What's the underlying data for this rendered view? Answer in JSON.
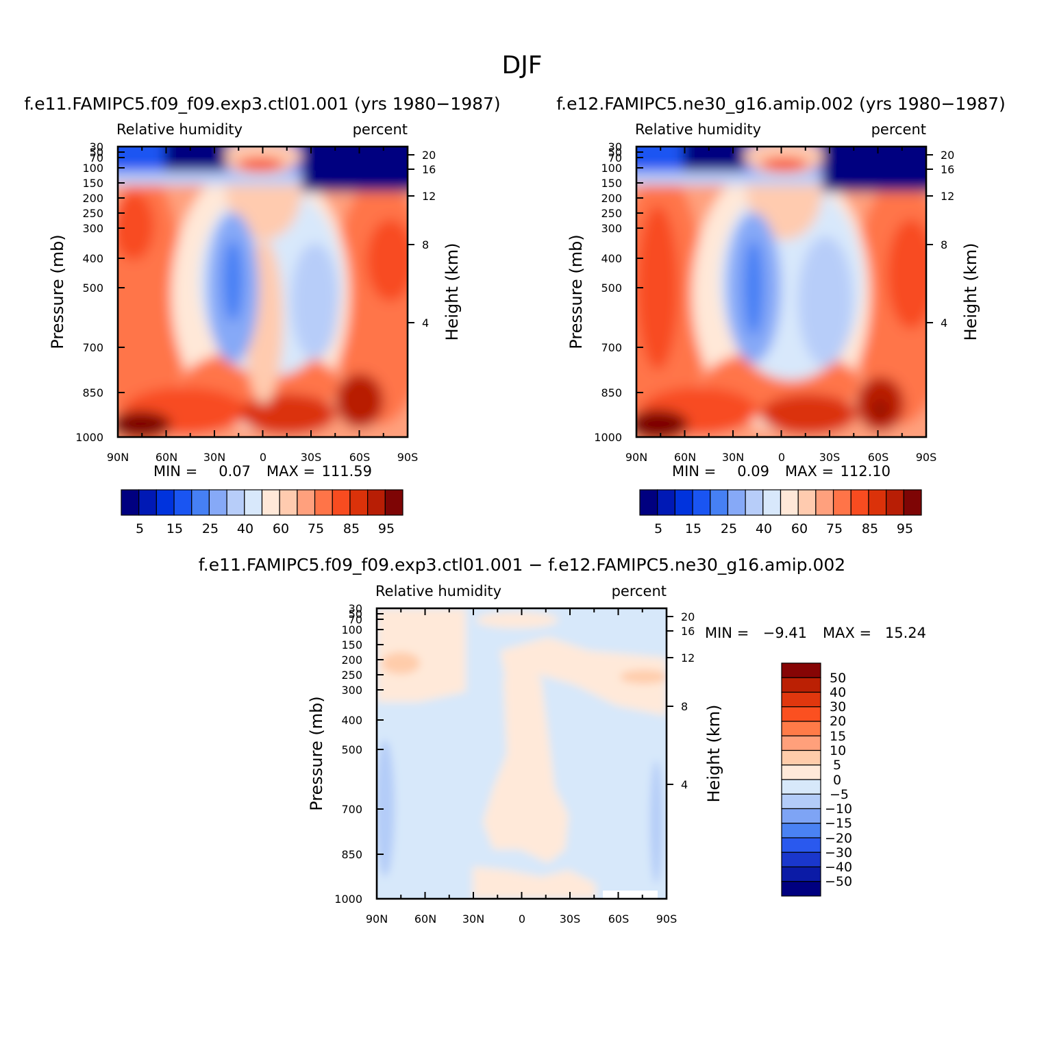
{
  "figure": {
    "title": "DJF"
  },
  "colors": {
    "rh_palette": [
      "#000080",
      "#0019B5",
      "#0033DD",
      "#1A55F2",
      "#4680F4",
      "#86A9F7",
      "#B7CDF9",
      "#D8E8FB",
      "#FFE8D8",
      "#FFCBAF",
      "#FFA07D",
      "#FF7448",
      "#F84C20",
      "#DB320A",
      "#B81E05",
      "#7E0505"
    ],
    "diff_palette": [
      "#000080",
      "#0B1BA6",
      "#1A37CC",
      "#2A59EE",
      "#4A82F3",
      "#7EA4F5",
      "#B3CCF8",
      "#D7E8FA",
      "#FFE9D9",
      "#FFCCAA",
      "#FFA07B",
      "#FF7B48",
      "#FB5020",
      "#E0370E",
      "#BB2004",
      "#860505"
    ]
  },
  "panels": {
    "left": {
      "title": "f.e11.FAMIPC5.f09_f09.exp3.ctl01.001 (yrs 1980−1987)",
      "var_label": "Relative humidity",
      "units": "percent",
      "ylabel": "Pressure (mb)",
      "y2label": "Height (km)",
      "min_label": "MIN =",
      "min_value": "0.07",
      "max_label": "MAX =",
      "max_value": "111.59"
    },
    "right": {
      "title": "f.e12.FAMIPC5.ne30_g16.amip.002 (yrs 1980−1987)",
      "var_label": "Relative humidity",
      "units": "percent",
      "ylabel": "Pressure (mb)",
      "y2label": "Height (km)",
      "min_label": "MIN =",
      "min_value": "0.09",
      "max_label": "MAX =",
      "max_value": "112.10"
    },
    "diff": {
      "title": "f.e11.FAMIPC5.f09_f09.exp3.ctl01.001 − f.e12.FAMIPC5.ne30_g16.amip.002",
      "var_label": "Relative humidity",
      "units": "percent",
      "ylabel": "Pressure (mb)",
      "y2label": "Height (km)",
      "min_label": "MIN =",
      "min_value": "−9.41",
      "max_label": "MAX =",
      "max_value": "15.24"
    }
  },
  "axis_labels": {
    "x_ticks": [
      "90N",
      "60N",
      "30N",
      "0",
      "30S",
      "60S",
      "90S"
    ],
    "pressure_ticks": [
      "30",
      "50",
      "70",
      "100",
      "150",
      "200",
      "250",
      "300",
      "400",
      "500",
      "700",
      "850",
      "1000"
    ],
    "height_ticks": [
      "20",
      "16",
      "12",
      "8",
      "4"
    ]
  },
  "colorbars": {
    "rh_labels": [
      "5",
      "15",
      "25",
      "40",
      "60",
      "75",
      "85",
      "95"
    ],
    "diff_labels": [
      "50",
      "40",
      "30",
      "20",
      "15",
      "10",
      "5",
      "0",
      "−5",
      "−10",
      "−15",
      "−20",
      "−30",
      "−40",
      "−50"
    ]
  },
  "chart_data": [
    {
      "type": "heatmap",
      "name": "f.e11.FAMIPC5.f09_f09.exp3.ctl01.001 (yrs 1980−1987)",
      "variable": "Relative humidity",
      "units": "percent",
      "x_range": [
        "90N",
        "90S"
      ],
      "pressure_range_mb": [
        1000,
        30
      ],
      "levels": [
        5,
        10,
        15,
        20,
        25,
        30,
        40,
        50,
        60,
        70,
        75,
        80,
        85,
        90,
        95
      ],
      "min": 0.07,
      "max": 111.59
    },
    {
      "type": "heatmap",
      "name": "f.e12.FAMIPC5.ne30_g16.amip.002 (yrs 1980−1987)",
      "variable": "Relative humidity",
      "units": "percent",
      "x_range": [
        "90N",
        "90S"
      ],
      "pressure_range_mb": [
        1000,
        30
      ],
      "levels": [
        5,
        10,
        15,
        20,
        25,
        30,
        40,
        50,
        60,
        70,
        75,
        80,
        85,
        90,
        95
      ],
      "min": 0.09,
      "max": 112.1
    },
    {
      "type": "heatmap",
      "name": "f.e11.FAMIPC5.f09_f09.exp3.ctl01.001 − f.e12.FAMIPC5.ne30_g16.amip.002",
      "variable": "Relative humidity",
      "units": "percent",
      "x_range": [
        "90N",
        "90S"
      ],
      "pressure_range_mb": [
        1000,
        30
      ],
      "levels": [
        -50,
        -40,
        -30,
        -20,
        -15,
        -10,
        -5,
        0,
        5,
        10,
        15,
        20,
        30,
        40,
        50
      ],
      "min": -9.41,
      "max": 15.24
    }
  ]
}
